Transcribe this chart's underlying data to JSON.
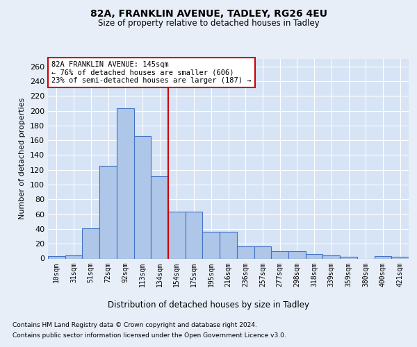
{
  "title1": "82A, FRANKLIN AVENUE, TADLEY, RG26 4EU",
  "title2": "Size of property relative to detached houses in Tadley",
  "xlabel": "Distribution of detached houses by size in Tadley",
  "ylabel": "Number of detached properties",
  "annotation_line1": "82A FRANKLIN AVENUE: 145sqm",
  "annotation_line2": "← 76% of detached houses are smaller (606)",
  "annotation_line3": "23% of semi-detached houses are larger (187) →",
  "footer1": "Contains HM Land Registry data © Crown copyright and database right 2024.",
  "footer2": "Contains public sector information licensed under the Open Government Licence v3.0.",
  "bin_labels": [
    "10sqm",
    "31sqm",
    "51sqm",
    "72sqm",
    "92sqm",
    "113sqm",
    "134sqm",
    "154sqm",
    "175sqm",
    "195sqm",
    "216sqm",
    "236sqm",
    "257sqm",
    "277sqm",
    "298sqm",
    "318sqm",
    "339sqm",
    "359sqm",
    "380sqm",
    "400sqm",
    "421sqm"
  ],
  "bar_values": [
    3,
    4,
    41,
    125,
    203,
    166,
    111,
    63,
    63,
    36,
    36,
    16,
    16,
    10,
    10,
    6,
    4,
    2,
    0,
    3,
    2
  ],
  "bar_color": "#aec6e8",
  "bar_edge_color": "#4472c4",
  "vline_x": 6.5,
  "vline_color": "#cc0000",
  "background_color": "#e8eef8",
  "plot_bg_color": "#d6e4f5",
  "ylim": [
    0,
    270
  ],
  "yticks": [
    0,
    20,
    40,
    60,
    80,
    100,
    120,
    140,
    160,
    180,
    200,
    220,
    240,
    260
  ]
}
